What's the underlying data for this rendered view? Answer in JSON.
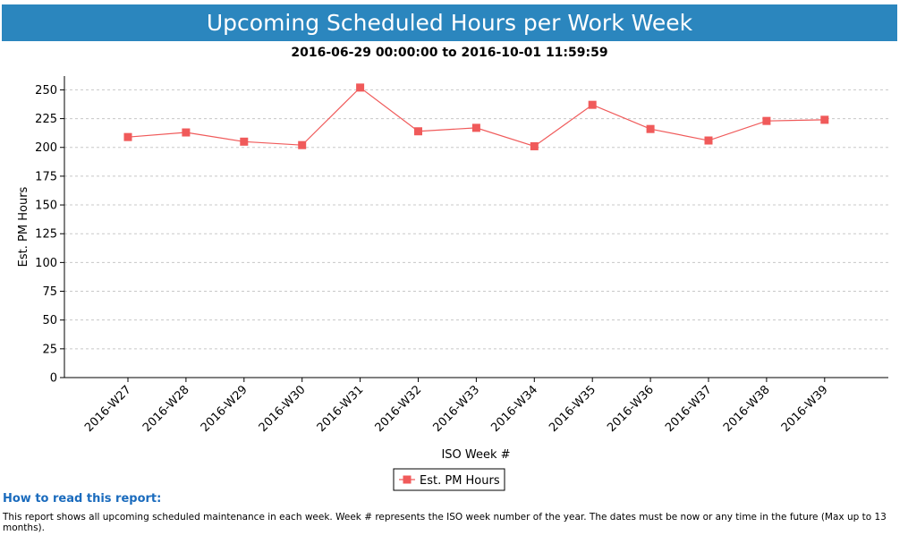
{
  "header": {
    "title": "Upcoming Scheduled Hours per Work Week",
    "subtitle": "2016-06-29 00:00:00 to 2016-10-01 11:59:59"
  },
  "colors": {
    "title_bar": "#2b86be",
    "series": "#f05a5a",
    "grid": "#c8c8c8",
    "how_title": "#1a6bbd"
  },
  "chart_data": {
    "type": "line",
    "title": "Upcoming Scheduled Hours per Work Week",
    "subtitle": "2016-06-29 00:00:00 to 2016-10-01 11:59:59",
    "xlabel": "ISO Week #",
    "ylabel": "Est. PM Hours",
    "categories": [
      "2016-W27",
      "2016-W28",
      "2016-W29",
      "2016-W30",
      "2016-W31",
      "2016-W32",
      "2016-W33",
      "2016-W34",
      "2016-W35",
      "2016-W36",
      "2016-W37",
      "2016-W38",
      "2016-W39"
    ],
    "series": [
      {
        "name": "Est. PM Hours",
        "values": [
          209,
          213,
          205,
          202,
          252,
          214,
          217,
          201,
          237,
          216,
          206,
          223,
          224
        ],
        "marker": "square"
      }
    ],
    "ylim": [
      0,
      262
    ],
    "yticks": [
      0,
      25,
      50,
      75,
      100,
      125,
      150,
      175,
      200,
      225,
      250
    ],
    "grid": "horizontal dashed",
    "legend": "bottom-center"
  },
  "footer": {
    "how_title": "How to read this report:",
    "how_text": "This report shows all upcoming scheduled maintenance in each week. Week # represents the ISO week number of the year. The dates must be now or any time in the future (Max up to 13 months)."
  }
}
